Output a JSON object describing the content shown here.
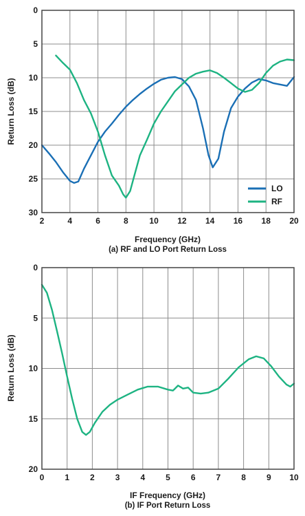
{
  "colors": {
    "lo": "#1a6fb5",
    "rf": "#1db382",
    "grid": "#8c8c8c",
    "frame": "#444444"
  },
  "chart_data": [
    {
      "type": "line",
      "xlabel": "Frequency (GHz)",
      "ylabel": "Return Loss (dB)",
      "caption": "(a) RF and LO Port Return Loss",
      "xlim": [
        2,
        20
      ],
      "ylim": [
        0,
        30
      ],
      "y_inverted": true,
      "x_ticks": [
        2,
        4,
        6,
        8,
        10,
        12,
        14,
        16,
        18,
        20
      ],
      "y_ticks": [
        0,
        5,
        10,
        15,
        20,
        25,
        30
      ],
      "grid": true,
      "legend_position": "bottom-right",
      "series": [
        {
          "name": "LO",
          "color": "#1a6fb5",
          "points": [
            [
              2,
              20
            ],
            [
              2.5,
              21.2
            ],
            [
              3,
              22.5
            ],
            [
              3.5,
              24
            ],
            [
              4,
              25.3
            ],
            [
              4.3,
              25.6
            ],
            [
              4.6,
              25.4
            ],
            [
              5,
              23.5
            ],
            [
              5.5,
              21.5
            ],
            [
              6,
              19.5
            ],
            [
              6.5,
              18
            ],
            [
              7,
              16.8
            ],
            [
              7.5,
              15.5
            ],
            [
              8,
              14.3
            ],
            [
              8.5,
              13.3
            ],
            [
              9,
              12.4
            ],
            [
              9.5,
              11.6
            ],
            [
              10,
              10.9
            ],
            [
              10.5,
              10.3
            ],
            [
              11,
              10
            ],
            [
              11.5,
              9.9
            ],
            [
              12,
              10.2
            ],
            [
              12.5,
              11.3
            ],
            [
              13,
              13.3
            ],
            [
              13.5,
              17.5
            ],
            [
              13.9,
              21.5
            ],
            [
              14.2,
              23.3
            ],
            [
              14.6,
              22
            ],
            [
              15,
              18
            ],
            [
              15.5,
              14.5
            ],
            [
              16,
              12.8
            ],
            [
              16.5,
              11.6
            ],
            [
              17,
              10.7
            ],
            [
              17.5,
              10.2
            ],
            [
              18,
              10.4
            ],
            [
              18.5,
              10.8
            ],
            [
              19,
              11
            ],
            [
              19.5,
              11.2
            ],
            [
              20,
              9.9
            ]
          ]
        },
        {
          "name": "RF",
          "color": "#1db382",
          "points": [
            [
              3,
              6.7
            ],
            [
              3.5,
              7.8
            ],
            [
              4,
              8.8
            ],
            [
              4.5,
              10.8
            ],
            [
              5,
              13.3
            ],
            [
              5.5,
              15.3
            ],
            [
              6,
              18
            ],
            [
              6.5,
              21.5
            ],
            [
              7,
              24.5
            ],
            [
              7.5,
              26
            ],
            [
              7.8,
              27.3
            ],
            [
              8,
              27.8
            ],
            [
              8.3,
              26.8
            ],
            [
              8.6,
              24.5
            ],
            [
              9,
              21.5
            ],
            [
              9.5,
              19.2
            ],
            [
              10,
              16.8
            ],
            [
              10.5,
              15
            ],
            [
              11,
              13.5
            ],
            [
              11.5,
              12
            ],
            [
              12,
              11
            ],
            [
              12.5,
              10
            ],
            [
              13,
              9.4
            ],
            [
              13.5,
              9.1
            ],
            [
              14,
              8.9
            ],
            [
              14.5,
              9.3
            ],
            [
              15,
              10
            ],
            [
              15.5,
              10.8
            ],
            [
              16,
              11.6
            ],
            [
              16.5,
              12.1
            ],
            [
              17,
              11.8
            ],
            [
              17.5,
              10.8
            ],
            [
              18,
              9.3
            ],
            [
              18.5,
              8.2
            ],
            [
              19,
              7.6
            ],
            [
              19.5,
              7.3
            ],
            [
              20,
              7.4
            ]
          ]
        }
      ]
    },
    {
      "type": "line",
      "xlabel": "IF Frequency (GHz)",
      "ylabel": "Return Loss (dB)",
      "caption": "(b) IF Port Return Loss",
      "xlim": [
        0,
        10
      ],
      "ylim": [
        0,
        20
      ],
      "y_inverted": true,
      "x_ticks": [
        0,
        1,
        2,
        3,
        4,
        5,
        6,
        7,
        8,
        9,
        10
      ],
      "y_ticks": [
        0,
        5,
        10,
        15,
        20
      ],
      "grid": true,
      "series": [
        {
          "color": "#1db382",
          "points": [
            [
              0,
              1.7
            ],
            [
              0.2,
              2.5
            ],
            [
              0.4,
              4.2
            ],
            [
              0.6,
              6.3
            ],
            [
              0.8,
              8.5
            ],
            [
              1,
              10.8
            ],
            [
              1.2,
              13
            ],
            [
              1.4,
              15
            ],
            [
              1.6,
              16.3
            ],
            [
              1.75,
              16.6
            ],
            [
              1.9,
              16.3
            ],
            [
              2.1,
              15.4
            ],
            [
              2.4,
              14.3
            ],
            [
              2.7,
              13.6
            ],
            [
              3,
              13.1
            ],
            [
              3.4,
              12.6
            ],
            [
              3.8,
              12.1
            ],
            [
              4.2,
              11.8
            ],
            [
              4.6,
              11.8
            ],
            [
              5,
              12.1
            ],
            [
              5.2,
              12.2
            ],
            [
              5.4,
              11.7
            ],
            [
              5.6,
              12
            ],
            [
              5.8,
              11.9
            ],
            [
              6,
              12.4
            ],
            [
              6.3,
              12.5
            ],
            [
              6.6,
              12.4
            ],
            [
              7,
              12
            ],
            [
              7.4,
              11
            ],
            [
              7.8,
              9.9
            ],
            [
              8.2,
              9.1
            ],
            [
              8.5,
              8.8
            ],
            [
              8.8,
              9
            ],
            [
              9.1,
              9.8
            ],
            [
              9.4,
              10.8
            ],
            [
              9.7,
              11.6
            ],
            [
              9.85,
              11.8
            ],
            [
              10,
              11.5
            ]
          ]
        }
      ]
    }
  ]
}
